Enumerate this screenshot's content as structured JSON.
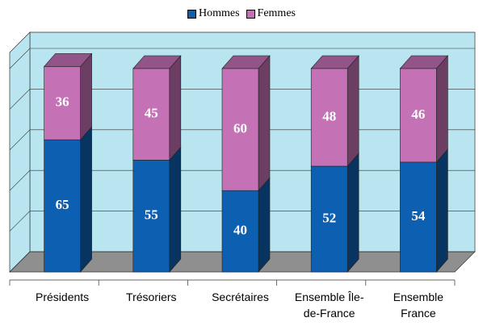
{
  "chart_data": {
    "type": "bar3d_stacked",
    "categories": [
      "Présidents",
      "Trésoriers",
      "Secrétaires",
      "Ensemble Île-de-France",
      "Ensemble France"
    ],
    "series": [
      {
        "name": "Hommes",
        "color": "#0d5fb1",
        "values": [
          65,
          55,
          40,
          52,
          54
        ]
      },
      {
        "name": "Femmes",
        "color": "#c471b6",
        "values": [
          36,
          45,
          60,
          48,
          46
        ]
      }
    ],
    "ylim": [
      0,
      100
    ],
    "yticks": [
      0,
      20,
      40,
      60,
      80,
      100
    ],
    "grid": true,
    "legend": "top"
  }
}
